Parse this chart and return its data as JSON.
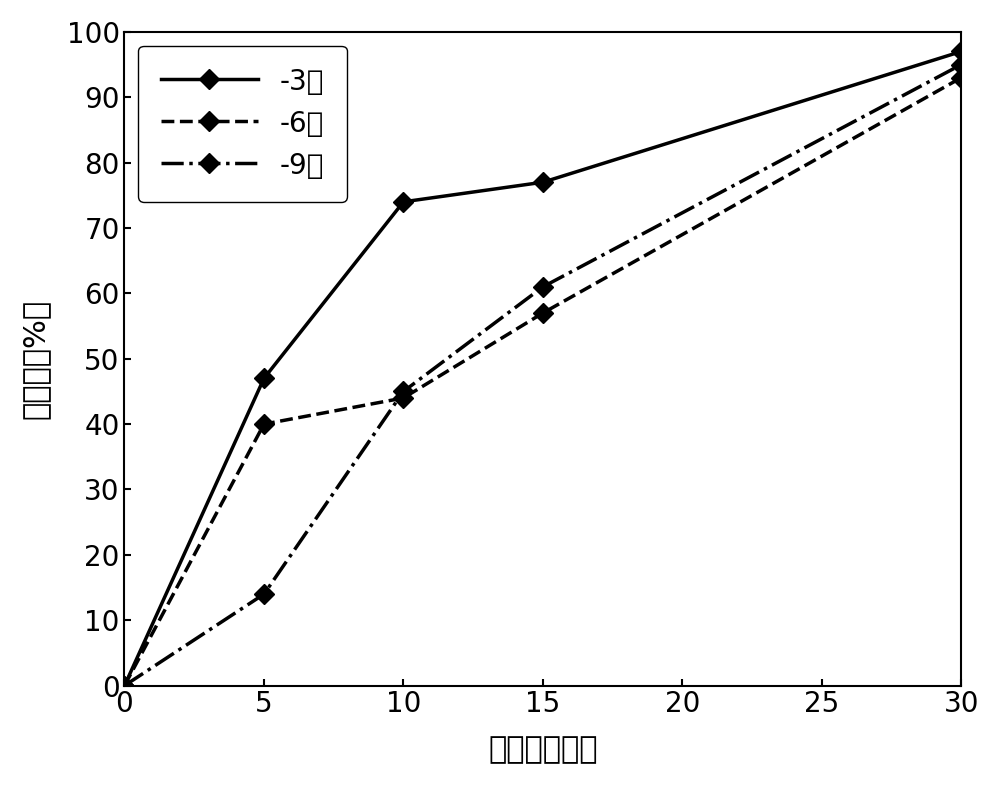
{
  "series": [
    {
      "label": "-3次",
      "x": [
        0,
        5,
        10,
        15,
        30
      ],
      "y": [
        0,
        47,
        74,
        77,
        97
      ],
      "linestyle": "-",
      "color": "#000000",
      "linewidth": 2.5,
      "marker": "D",
      "markersize": 10
    },
    {
      "label": "-6次",
      "x": [
        0,
        5,
        10,
        15,
        30
      ],
      "y": [
        0,
        40,
        44,
        57,
        93
      ],
      "linestyle": "--",
      "color": "#000000",
      "linewidth": 2.5,
      "marker": "D",
      "markersize": 10
    },
    {
      "label": "-9次",
      "x": [
        0,
        5,
        10,
        15,
        30
      ],
      "y": [
        0,
        14,
        45,
        61,
        95
      ],
      "linestyle": "-.",
      "color": "#000000",
      "linewidth": 2.5,
      "marker": "D",
      "markersize": 10
    }
  ],
  "xlabel": "时间（分钟）",
  "ylabel": "溦出率（%）",
  "xlim": [
    0,
    30
  ],
  "ylim": [
    0,
    100
  ],
  "xticks": [
    0,
    5,
    10,
    15,
    20,
    25,
    30
  ],
  "yticks": [
    0,
    10,
    20,
    30,
    40,
    50,
    60,
    70,
    80,
    90,
    100
  ],
  "xlabel_fontsize": 22,
  "ylabel_fontsize": 22,
  "tick_fontsize": 20,
  "legend_fontsize": 20,
  "background_color": "#ffffff",
  "figure_width": 10.0,
  "figure_height": 7.85,
  "dpi": 100
}
